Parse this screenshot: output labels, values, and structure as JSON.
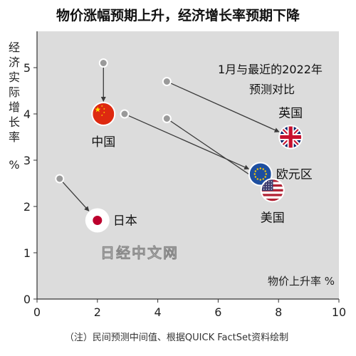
{
  "chart_data": {
    "type": "scatter",
    "title": "物价涨幅预期上升，经济增长率预期下降",
    "subtitle": "1月与最近的2022年\n预测对比",
    "xlabel": "物价上升率 %",
    "ylabel": "经济实际增长率 %",
    "xlim": [
      0,
      10
    ],
    "ylim": [
      0,
      5.8
    ],
    "x_ticks": [
      "0",
      "2",
      "4",
      "6",
      "8",
      "10"
    ],
    "y_ticks": [
      "0",
      "1",
      "2",
      "3",
      "4",
      "5"
    ],
    "grid": false,
    "watermark": "日经中文网",
    "footnote": "（注）民间预测中间值、根据QUICK FactSet资料绘制",
    "points": [
      {
        "label": "中国",
        "flag": "china-flag",
        "jan": {
          "x": 2.2,
          "y": 5.1
        },
        "latest": {
          "x": 2.2,
          "y": 4.0
        }
      },
      {
        "label": "英国",
        "flag": "uk-flag",
        "jan": {
          "x": 4.3,
          "y": 4.7
        },
        "latest": {
          "x": 8.4,
          "y": 3.5
        }
      },
      {
        "label": "欧元区",
        "flag": "eu-flag",
        "jan": {
          "x": 2.9,
          "y": 4.0
        },
        "latest": {
          "x": 7.4,
          "y": 2.7
        }
      },
      {
        "label": "美国",
        "flag": "us-flag",
        "jan": {
          "x": 4.3,
          "y": 3.9
        },
        "latest": {
          "x": 7.8,
          "y": 2.35
        }
      },
      {
        "label": "日本",
        "flag": "japan-flag",
        "jan": {
          "x": 0.75,
          "y": 2.6
        },
        "latest": {
          "x": 2.0,
          "y": 1.7
        }
      }
    ]
  }
}
